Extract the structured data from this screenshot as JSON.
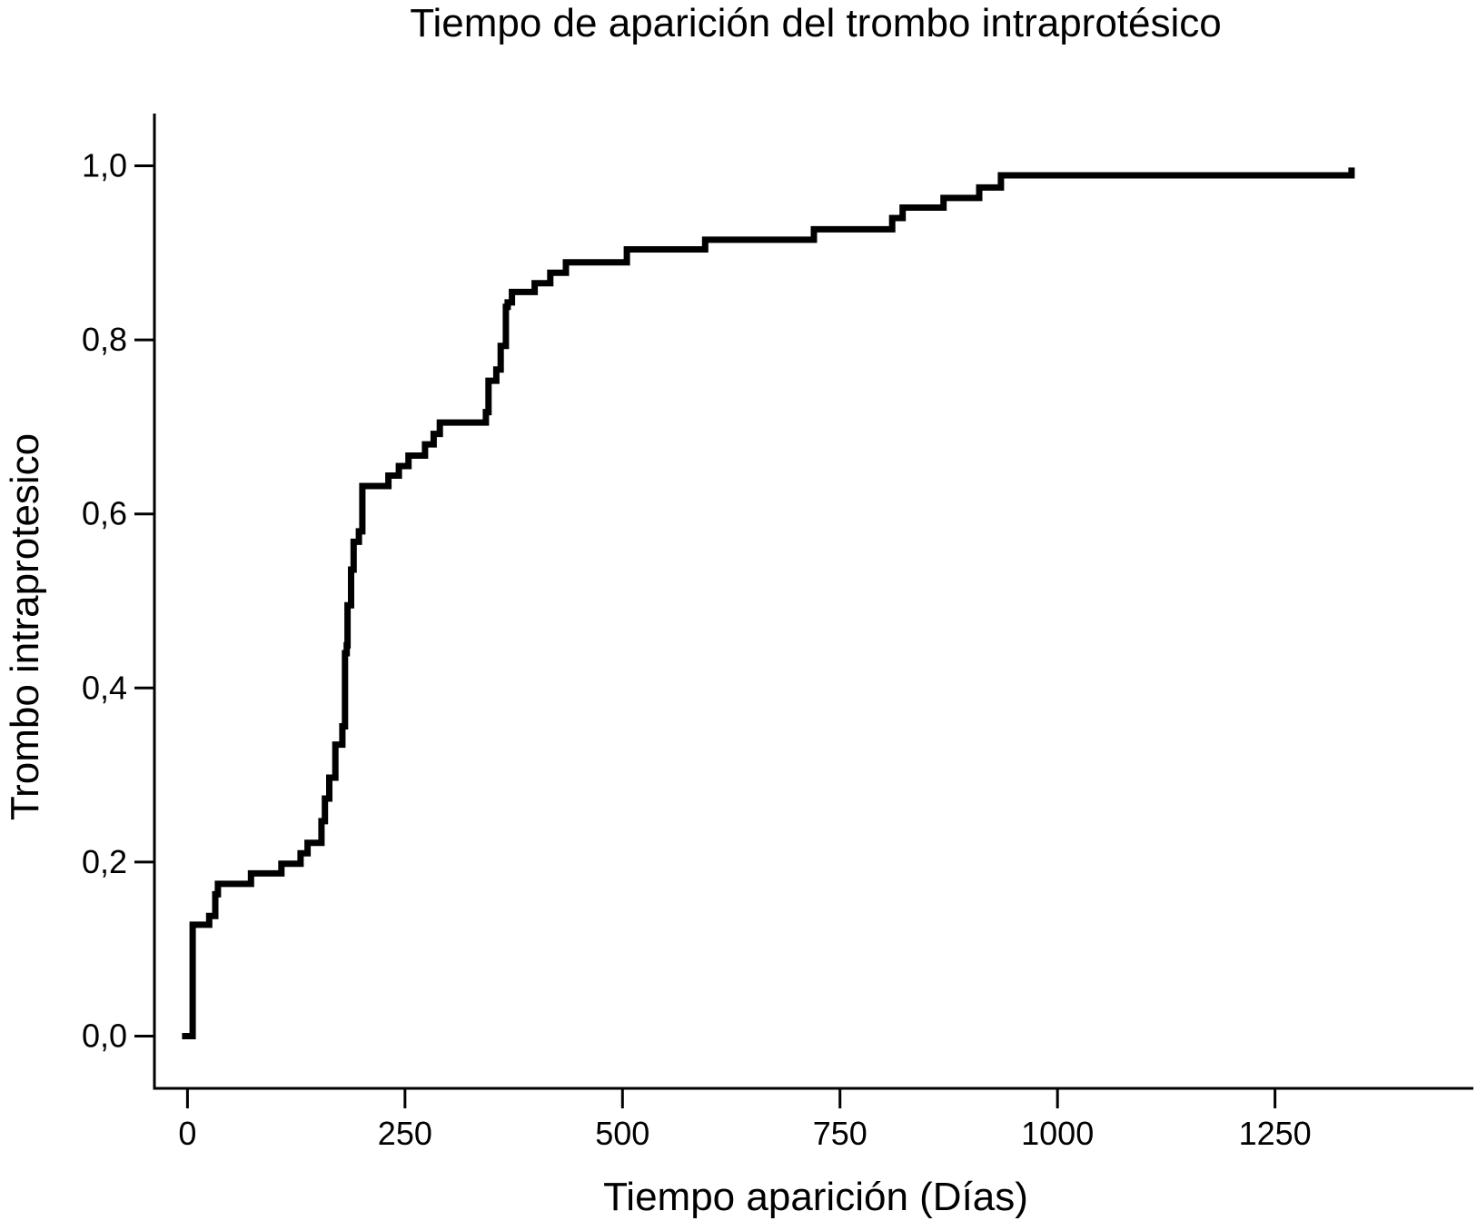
{
  "chart_data": {
    "type": "line",
    "step": true,
    "title": "Tiempo de aparición del trombo intraprotésico",
    "xlabel": "Tiempo aparición (Días)",
    "ylabel": "Trombo intraprotesico",
    "xlim": [
      -38,
      1478
    ],
    "ylim": [
      -0.06,
      1.06
    ],
    "xticks": [
      0,
      250,
      500,
      750,
      1000,
      1250
    ],
    "xtick_labels": [
      "0",
      "250",
      "500",
      "750",
      "1000",
      "1250"
    ],
    "yticks": [
      0.0,
      0.2,
      0.4,
      0.6,
      0.8,
      1.0
    ],
    "ytick_labels": [
      "0,0",
      "0,2",
      "0,4",
      "0,6",
      "0,8",
      "1,0"
    ],
    "grid": false,
    "legend": "none",
    "line_color": "#000000",
    "series": [
      {
        "x": [
          0,
          6,
          25,
          32,
          35,
          73,
          108,
          130,
          138,
          154,
          158,
          163,
          170,
          178,
          181,
          183,
          184,
          188,
          191,
          197,
          201,
          231,
          243,
          254,
          273,
          283,
          290,
          343,
          346,
          355,
          360,
          366,
          368,
          373,
          399,
          417,
          435,
          505,
          595,
          720,
          810,
          822,
          869,
          910,
          935,
          1338
        ],
        "y": [
          0.0,
          0.128,
          0.138,
          0.163,
          0.175,
          0.187,
          0.198,
          0.21,
          0.222,
          0.247,
          0.273,
          0.297,
          0.335,
          0.356,
          0.44,
          0.449,
          0.495,
          0.536,
          0.568,
          0.58,
          0.632,
          0.644,
          0.655,
          0.667,
          0.68,
          0.692,
          0.705,
          0.717,
          0.753,
          0.766,
          0.793,
          0.838,
          0.843,
          0.855,
          0.865,
          0.877,
          0.889,
          0.904,
          0.915,
          0.927,
          0.94,
          0.952,
          0.963,
          0.975,
          0.989,
          0.998
        ]
      }
    ]
  }
}
